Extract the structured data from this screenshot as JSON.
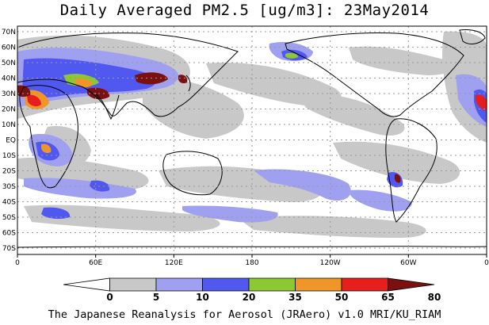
{
  "title": "Daily Averaged PM2.5 [ug/m3]: 23May2014",
  "credit": "The Japanese Reanalysis for Aerosol (JRAero) v1.0 MRI/KU_RIAM",
  "lat_labels": [
    "70N",
    "60N",
    "50N",
    "40N",
    "30N",
    "20N",
    "10N",
    "EQ",
    "10S",
    "20S",
    "30S",
    "40S",
    "50S",
    "60S",
    "70S"
  ],
  "lon_labels": [
    "0",
    "60E",
    "120E",
    "180",
    "120W",
    "60W",
    "0"
  ],
  "colorbar": {
    "ticks": [
      "0",
      "5",
      "10",
      "20",
      "35",
      "50",
      "65",
      "80"
    ],
    "colors": [
      "#ffffff",
      "#c8c8c8",
      "#a0a0f0",
      "#5058f0",
      "#8cc832",
      "#f09628",
      "#e61e1e",
      "#7a1010"
    ]
  }
}
